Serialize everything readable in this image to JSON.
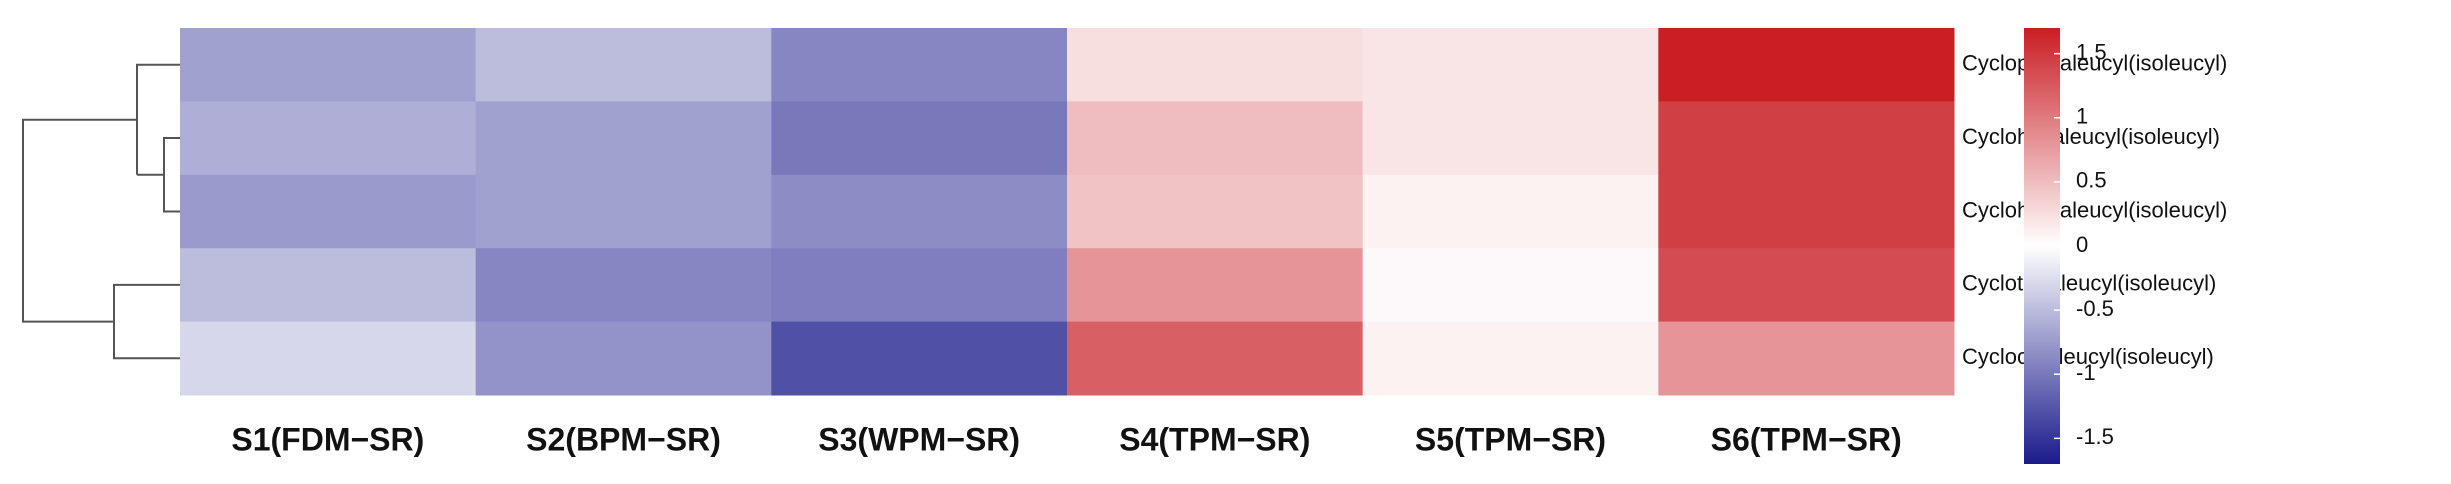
{
  "chart_data": {
    "type": "heatmap",
    "categories": [
      "S1(FDM−SR)",
      "S2(BPM−SR)",
      "S3(WPM−SR)",
      "S4(TPM−SR)",
      "S5(TPM−SR)",
      "S6(TPM−SR)"
    ],
    "rows": [
      "Cyclopentaleucyl(isoleucyl)",
      "Cyclohexaleucyl(isoleucyl)",
      "Cycloheptaleucyl(isoleucyl)",
      "Cyclotetraleucyl(isoleucyl)",
      "Cyclooctaleucyl(isoleucyl)"
    ],
    "values": [
      [
        -0.7,
        -0.5,
        -0.9,
        0.25,
        0.2,
        1.7
      ],
      [
        -0.6,
        -0.7,
        -1.0,
        0.5,
        0.2,
        1.45
      ],
      [
        -0.75,
        -0.7,
        -0.85,
        0.45,
        0.1,
        1.45
      ],
      [
        -0.5,
        -0.9,
        -0.95,
        0.8,
        0.05,
        1.35
      ],
      [
        -0.3,
        -0.8,
        -1.3,
        1.2,
        0.1,
        0.8
      ]
    ],
    "colors": [
      "#1a1a8c",
      "#ffffff",
      "#c81e24"
    ],
    "clim": [
      -1.7,
      1.7
    ],
    "colorbar_ticks": [
      -1.5,
      -1,
      -0.5,
      0,
      0.5,
      1,
      1.5
    ]
  }
}
